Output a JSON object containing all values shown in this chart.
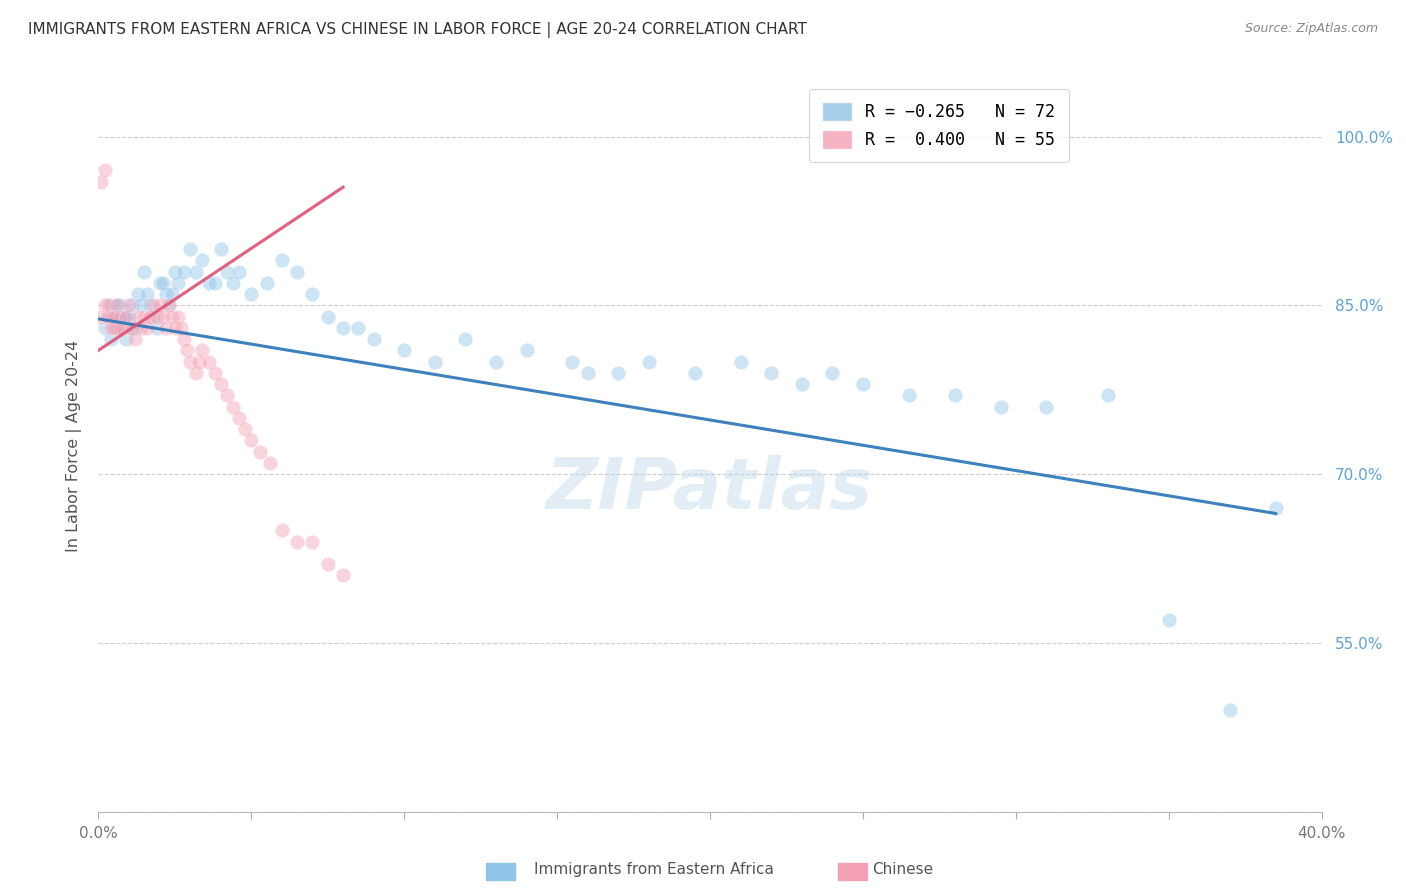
{
  "title": "IMMIGRANTS FROM EASTERN AFRICA VS CHINESE IN LABOR FORCE | AGE 20-24 CORRELATION CHART",
  "source": "Source: ZipAtlas.com",
  "ylabel": "In Labor Force | Age 20-24",
  "xlim": [
    0.0,
    0.4
  ],
  "ylim": [
    0.4,
    1.05
  ],
  "yticks": [
    0.55,
    0.7,
    0.85,
    1.0
  ],
  "yticklabels": [
    "55.0%",
    "70.0%",
    "85.0%",
    "100.0%"
  ],
  "xtick_positions": [
    0.0,
    0.05,
    0.1,
    0.15,
    0.2,
    0.25,
    0.3,
    0.35,
    0.4
  ],
  "legend1_label": "R = -0.265   N = 72",
  "legend2_label": "R =  0.400   N = 55",
  "legend1_color": "#90c4e8",
  "legend2_color": "#f4a0b5",
  "watermark": "ZIPatlas",
  "blue_scatter_x": [
    0.002,
    0.003,
    0.004,
    0.004,
    0.005,
    0.005,
    0.006,
    0.006,
    0.007,
    0.008,
    0.009,
    0.009,
    0.01,
    0.01,
    0.011,
    0.012,
    0.013,
    0.014,
    0.015,
    0.016,
    0.017,
    0.018,
    0.019,
    0.02,
    0.021,
    0.022,
    0.023,
    0.024,
    0.025,
    0.026,
    0.028,
    0.03,
    0.032,
    0.034,
    0.036,
    0.038,
    0.04,
    0.042,
    0.044,
    0.046,
    0.05,
    0.055,
    0.06,
    0.065,
    0.07,
    0.075,
    0.08,
    0.085,
    0.09,
    0.1,
    0.11,
    0.12,
    0.13,
    0.14,
    0.155,
    0.16,
    0.17,
    0.18,
    0.195,
    0.21,
    0.22,
    0.23,
    0.24,
    0.25,
    0.265,
    0.28,
    0.295,
    0.31,
    0.33,
    0.35,
    0.37,
    0.385
  ],
  "blue_scatter_y": [
    0.83,
    0.84,
    0.82,
    0.85,
    0.84,
    0.83,
    0.84,
    0.85,
    0.85,
    0.84,
    0.82,
    0.84,
    0.84,
    0.83,
    0.85,
    0.83,
    0.86,
    0.85,
    0.88,
    0.86,
    0.85,
    0.84,
    0.83,
    0.87,
    0.87,
    0.86,
    0.85,
    0.86,
    0.88,
    0.87,
    0.88,
    0.9,
    0.88,
    0.89,
    0.87,
    0.87,
    0.9,
    0.88,
    0.87,
    0.88,
    0.86,
    0.87,
    0.89,
    0.88,
    0.86,
    0.84,
    0.83,
    0.83,
    0.82,
    0.81,
    0.8,
    0.82,
    0.8,
    0.81,
    0.8,
    0.79,
    0.79,
    0.8,
    0.79,
    0.8,
    0.79,
    0.78,
    0.79,
    0.78,
    0.77,
    0.77,
    0.76,
    0.76,
    0.77,
    0.57,
    0.49,
    0.67
  ],
  "pink_scatter_x": [
    0.001,
    0.001,
    0.002,
    0.002,
    0.003,
    0.003,
    0.004,
    0.004,
    0.005,
    0.005,
    0.006,
    0.006,
    0.007,
    0.007,
    0.008,
    0.009,
    0.01,
    0.011,
    0.012,
    0.013,
    0.014,
    0.015,
    0.016,
    0.017,
    0.018,
    0.019,
    0.02,
    0.021,
    0.022,
    0.023,
    0.024,
    0.025,
    0.026,
    0.027,
    0.028,
    0.029,
    0.03,
    0.032,
    0.033,
    0.034,
    0.036,
    0.038,
    0.04,
    0.042,
    0.044,
    0.046,
    0.048,
    0.05,
    0.053,
    0.056,
    0.06,
    0.065,
    0.07,
    0.075,
    0.08
  ],
  "pink_scatter_y": [
    0.84,
    0.96,
    0.85,
    0.97,
    0.84,
    0.85,
    0.83,
    0.84,
    0.84,
    0.83,
    0.83,
    0.85,
    0.84,
    0.83,
    0.83,
    0.84,
    0.85,
    0.83,
    0.82,
    0.84,
    0.83,
    0.84,
    0.83,
    0.84,
    0.85,
    0.84,
    0.85,
    0.84,
    0.83,
    0.85,
    0.84,
    0.83,
    0.84,
    0.83,
    0.82,
    0.81,
    0.8,
    0.79,
    0.8,
    0.81,
    0.8,
    0.79,
    0.78,
    0.77,
    0.76,
    0.75,
    0.74,
    0.73,
    0.72,
    0.71,
    0.65,
    0.64,
    0.64,
    0.62,
    0.61
  ],
  "blue_line_x": [
    0.0,
    0.385
  ],
  "blue_line_y": [
    0.838,
    0.665
  ],
  "pink_line_x": [
    0.0,
    0.08
  ],
  "pink_line_y": [
    0.81,
    0.955
  ],
  "scatter_size": 110,
  "scatter_alpha": 0.45,
  "line_alpha": 0.9,
  "background_color": "#ffffff",
  "grid_color": "#c8c8c8",
  "title_color": "#333333",
  "right_label_color": "#5ba3d9",
  "watermark_color": "#b8d4ea",
  "watermark_alpha": 0.4
}
